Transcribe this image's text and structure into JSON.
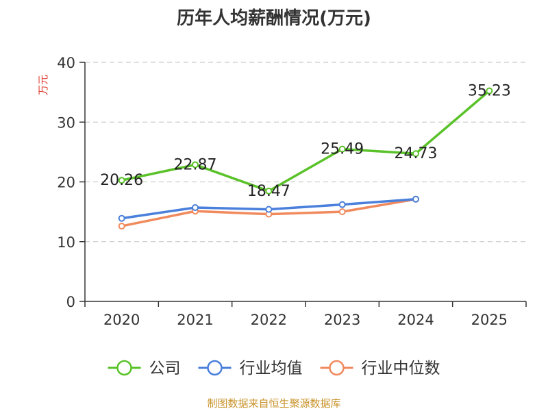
{
  "chart_data": {
    "type": "line",
    "title": "历年人均薪酬情况(万元)",
    "ylabel": "万元",
    "xlabel": "",
    "categories": [
      "2020",
      "2021",
      "2022",
      "2023",
      "2024",
      "2025"
    ],
    "ylim": [
      0,
      40
    ],
    "yticks": [
      0,
      10,
      20,
      30,
      40
    ],
    "grid": true,
    "legend_position": "bottom",
    "series": [
      {
        "name": "公司",
        "color": "#5ac229",
        "values": [
          20.26,
          22.87,
          18.47,
          25.49,
          24.73,
          35.23
        ],
        "labels": [
          "20.26",
          "22.87",
          "18.47",
          "25.49",
          "24.73",
          "35.23"
        ]
      },
      {
        "name": "行业均值",
        "color": "#4a7fdb",
        "values": [
          13.9,
          15.7,
          15.4,
          16.2,
          17.1,
          null
        ]
      },
      {
        "name": "行业中位数",
        "color": "#f08a5d",
        "values": [
          12.6,
          15.1,
          14.6,
          15.0,
          17.1,
          null
        ]
      }
    ]
  },
  "source_note": "制图数据来自恒生聚源数据库"
}
